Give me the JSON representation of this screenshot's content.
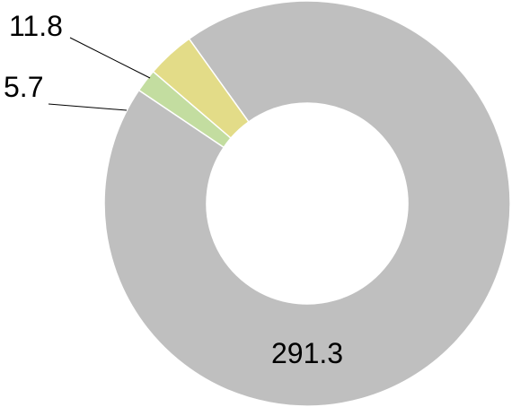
{
  "chart_data": {
    "type": "pie",
    "donut": true,
    "title": "",
    "legend": "none",
    "slices": [
      {
        "label": "291.3",
        "value": 291.3,
        "color": "#BFBFBF"
      },
      {
        "label": "5.7",
        "value": 5.7,
        "color": "#C3DDA0"
      },
      {
        "label": "11.8",
        "value": 11.8,
        "color": "#E3DC88"
      }
    ]
  }
}
